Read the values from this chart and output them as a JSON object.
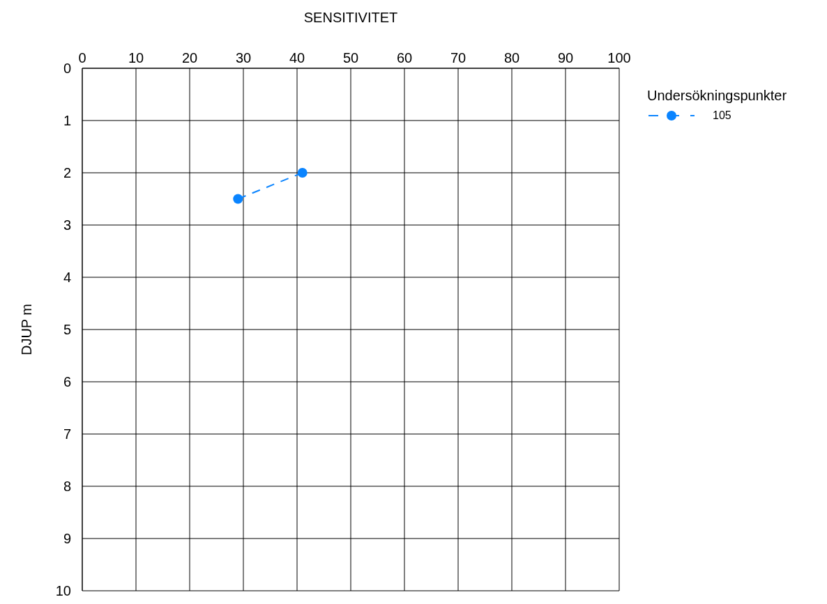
{
  "chart_data": {
    "type": "line",
    "xlabel": "SENSITIVITET",
    "ylabel": "DJUP m",
    "legend_title": "Undersökningspunkter",
    "xlim": [
      0,
      100
    ],
    "xticks": [
      0,
      10,
      20,
      30,
      40,
      50,
      60,
      70,
      80,
      90,
      100
    ],
    "ylim": [
      10,
      0
    ],
    "yticks": [
      0,
      1,
      2,
      3,
      4,
      5,
      6,
      7,
      8,
      9,
      10
    ],
    "grid": true,
    "legend": "top right",
    "marker": "circle",
    "line_style": "dashed",
    "series": [
      {
        "name": "105",
        "color": "#0a84ff",
        "x": [
          29,
          41
        ],
        "values": [
          2.5,
          2
        ]
      }
    ]
  }
}
